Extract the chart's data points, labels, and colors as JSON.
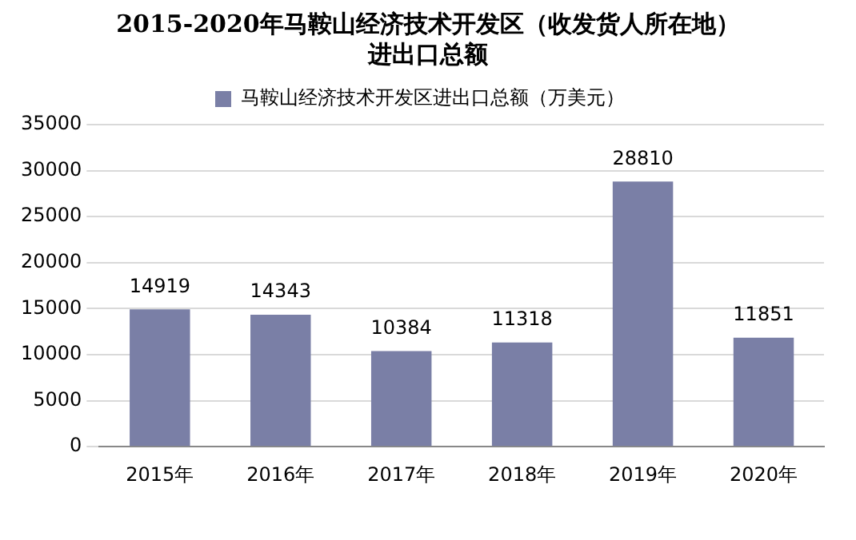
{
  "chart_data": {
    "type": "bar",
    "title": "2015-2020年马鞍山经济技术开发区（收发货人所在地）进出口总额",
    "categories": [
      "2015年",
      "2016年",
      "2017年",
      "2018年",
      "2019年",
      "2020年"
    ],
    "series": [
      {
        "name": "马鞍山经济技术开发区进出口总额（万美元）",
        "color": "#7a7fa6",
        "values": [
          14919,
          14343,
          10384,
          11318,
          28810,
          11851
        ]
      }
    ],
    "ylim": [
      0,
      35000
    ],
    "yticks": [
      0,
      5000,
      10000,
      15000,
      20000,
      25000,
      30000,
      35000
    ],
    "grid": "y",
    "legend": "top",
    "data_labels": true
  }
}
